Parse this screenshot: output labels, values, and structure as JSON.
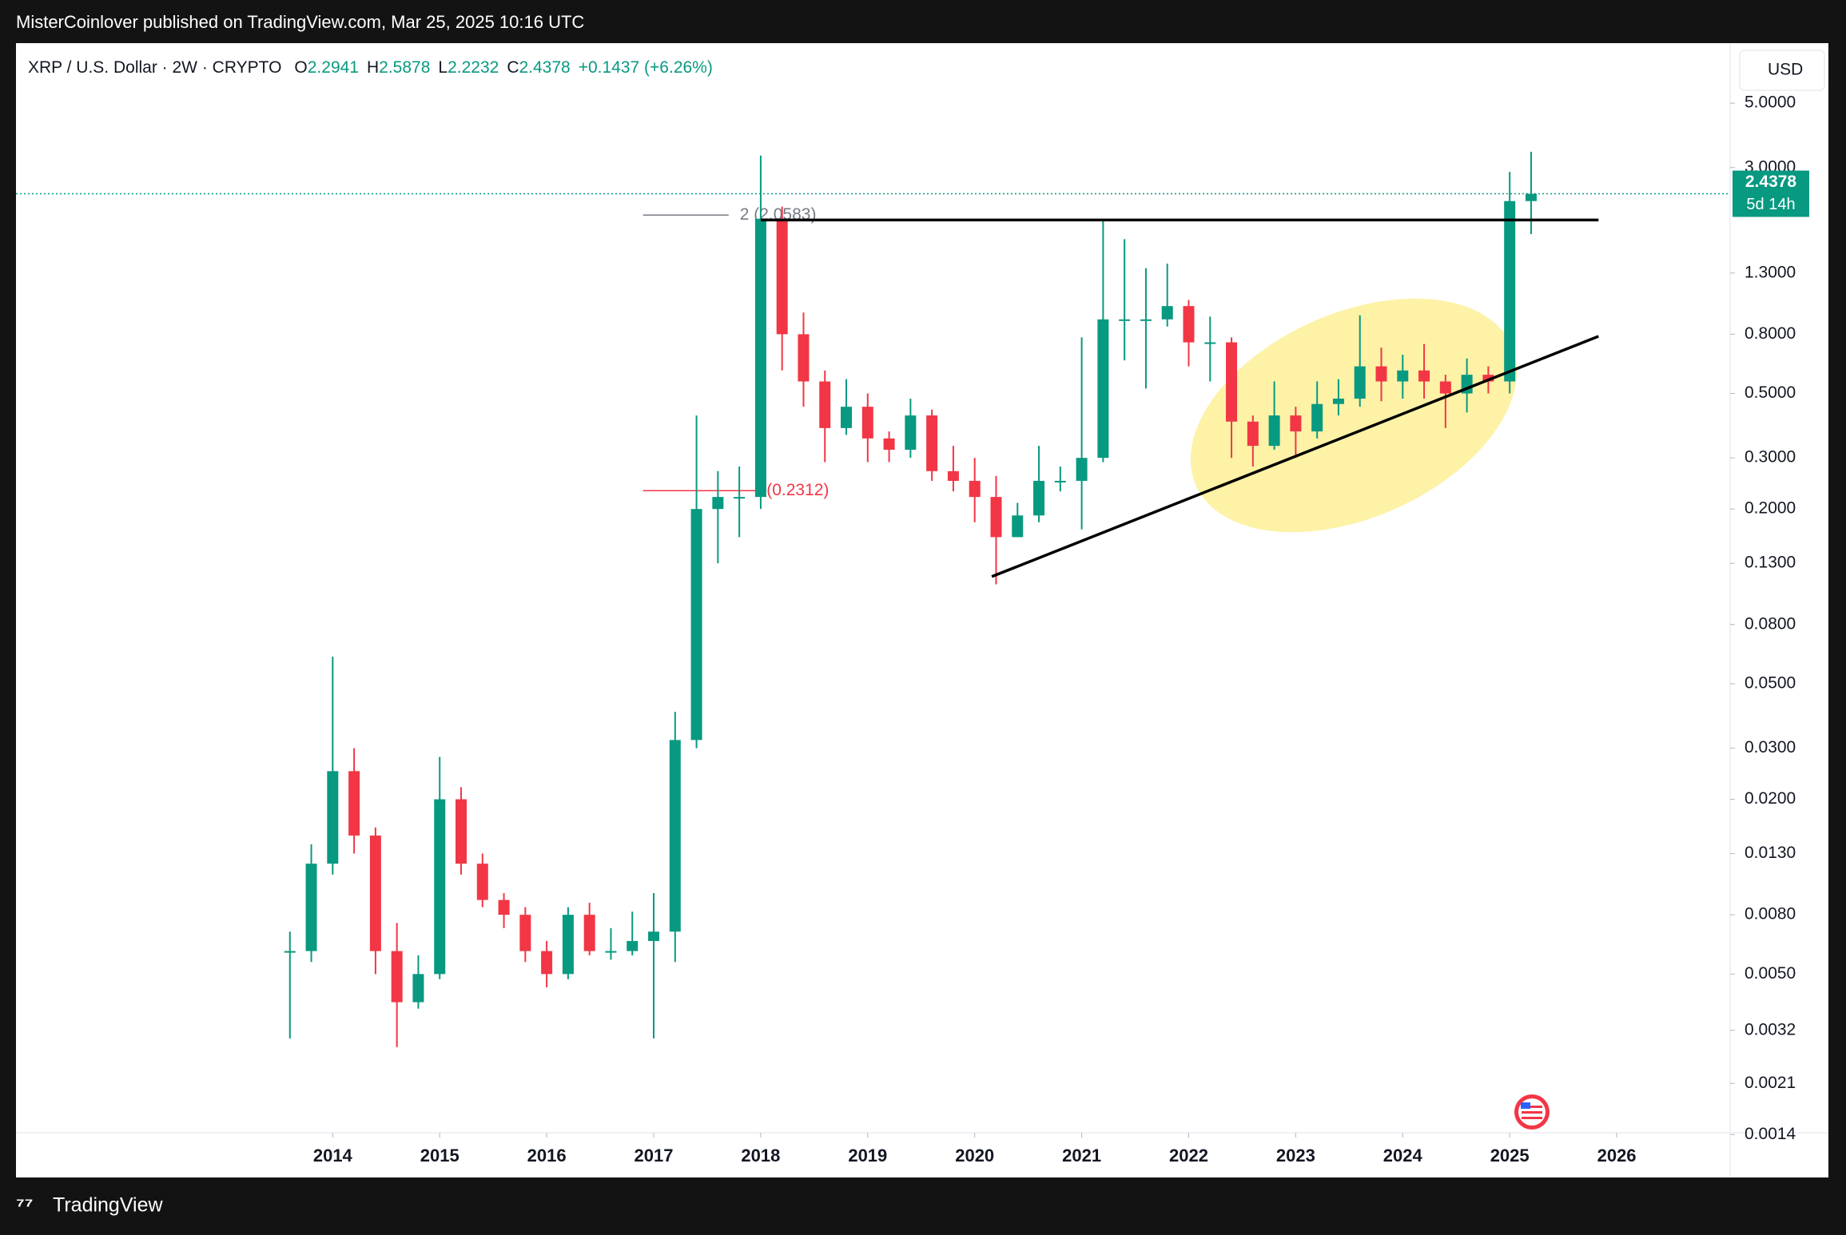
{
  "header": {
    "published": "MisterCoinlover published on TradingView.com, Mar 25, 2025 10:16 UTC",
    "brand": "TradingView",
    "currency": "USD"
  },
  "chart_data": {
    "type": "candlestick",
    "symbol": "XRP / U.S. Dollar · 2W · CRYPTO",
    "ohlc_legend": [
      {
        "key": "O",
        "value": 2.2941
      },
      {
        "key": "H",
        "value": 2.5878
      },
      {
        "key": "L",
        "value": 2.2232
      },
      {
        "key": "C",
        "value": 2.4378
      }
    ],
    "change": "+0.1437 (+6.26%)",
    "price_label": {
      "value": 2.4378,
      "countdown": "5d 14h"
    },
    "up_color": "#089981",
    "down_color": "#f23645",
    "log_scale": true,
    "grid": false,
    "xlim": [
      2011.04,
      2027.06
    ],
    "xticks": [
      2014,
      2015,
      2016,
      2017,
      2018,
      2019,
      2020,
      2021,
      2022,
      2023,
      2024,
      2025,
      2026
    ],
    "ylim": [
      0.00142,
      8.05
    ],
    "yticks": [
      {
        "value": 5,
        "label": "5.0000"
      },
      {
        "value": 3,
        "label": "3.0000"
      },
      {
        "value": 1.3,
        "label": "1.3000"
      },
      {
        "value": 0.8,
        "label": "0.8000"
      },
      {
        "value": 0.5,
        "label": "0.5000"
      },
      {
        "value": 0.3,
        "label": "0.3000"
      },
      {
        "value": 0.2,
        "label": "0.2000"
      },
      {
        "value": 0.13,
        "label": "0.1300"
      },
      {
        "value": 0.08,
        "label": "0.0800"
      },
      {
        "value": 0.05,
        "label": "0.0500"
      },
      {
        "value": 0.03,
        "label": "0.0300"
      },
      {
        "value": 0.02,
        "label": "0.0200"
      },
      {
        "value": 0.013,
        "label": "0.0130"
      },
      {
        "value": 0.008,
        "label": "0.0080"
      },
      {
        "value": 0.005,
        "label": "0.0050"
      },
      {
        "value": 0.0032,
        "label": "0.0032"
      },
      {
        "value": 0.0021,
        "label": "0.0021"
      },
      {
        "value": 0.0014,
        "label": "0.0014"
      }
    ],
    "x": [
      2013.6,
      2013.8,
      2014.0,
      2014.2,
      2014.4,
      2014.6,
      2014.8,
      2015.0,
      2015.2,
      2015.4,
      2015.6,
      2015.8,
      2016.0,
      2016.2,
      2016.4,
      2016.6,
      2016.8,
      2017.0,
      2017.2,
      2017.4,
      2017.6,
      2017.8,
      2018.0,
      2018.2,
      2018.4,
      2018.6,
      2018.8,
      2019.0,
      2019.2,
      2019.4,
      2019.6,
      2019.8,
      2020.0,
      2020.2,
      2020.4,
      2020.6,
      2020.8,
      2021.0,
      2021.2,
      2021.4,
      2021.6,
      2021.8,
      2022.0,
      2022.2,
      2022.4,
      2022.6,
      2022.8,
      2023.0,
      2023.2,
      2023.4,
      2023.6,
      2023.8,
      2024.0,
      2024.2,
      2024.4,
      2024.6,
      2024.8,
      2025.0,
      2025.2
    ],
    "open": [
      0.006,
      0.006,
      0.012,
      0.025,
      0.015,
      0.006,
      0.004,
      0.005,
      0.02,
      0.012,
      0.009,
      0.008,
      0.006,
      0.005,
      0.008,
      0.006,
      0.006,
      0.0065,
      0.007,
      0.032,
      0.2,
      0.22,
      0.22,
      2.0,
      0.8,
      0.55,
      0.38,
      0.45,
      0.35,
      0.32,
      0.42,
      0.27,
      0.25,
      0.22,
      0.16,
      0.19,
      0.25,
      0.25,
      0.3,
      0.9,
      0.9,
      0.9,
      1.0,
      0.75,
      0.75,
      0.4,
      0.33,
      0.42,
      0.37,
      0.46,
      0.48,
      0.62,
      0.55,
      0.6,
      0.55,
      0.5,
      0.58,
      0.55,
      2.3
    ],
    "high": [
      0.007,
      0.014,
      0.062,
      0.03,
      0.016,
      0.0075,
      0.0058,
      0.028,
      0.022,
      0.013,
      0.0095,
      0.0085,
      0.0065,
      0.0085,
      0.0088,
      0.0072,
      0.0082,
      0.0095,
      0.04,
      0.42,
      0.27,
      0.28,
      3.3,
      2.2,
      0.95,
      0.6,
      0.56,
      0.5,
      0.37,
      0.48,
      0.44,
      0.33,
      0.3,
      0.26,
      0.21,
      0.33,
      0.28,
      0.78,
      1.96,
      1.7,
      1.35,
      1.4,
      1.05,
      0.92,
      0.78,
      0.42,
      0.55,
      0.45,
      0.55,
      0.56,
      0.93,
      0.72,
      0.68,
      0.74,
      0.58,
      0.66,
      0.62,
      2.9,
      3.4
    ],
    "low": [
      0.003,
      0.0055,
      0.011,
      0.013,
      0.005,
      0.0028,
      0.0038,
      0.0048,
      0.011,
      0.0085,
      0.0072,
      0.0055,
      0.0045,
      0.0048,
      0.0058,
      0.0056,
      0.0058,
      0.003,
      0.0055,
      0.03,
      0.13,
      0.16,
      0.2,
      0.6,
      0.45,
      0.29,
      0.36,
      0.29,
      0.29,
      0.3,
      0.25,
      0.23,
      0.18,
      0.11,
      0.16,
      0.18,
      0.23,
      0.17,
      0.29,
      0.65,
      0.52,
      0.85,
      0.62,
      0.55,
      0.3,
      0.28,
      0.32,
      0.3,
      0.35,
      0.42,
      0.45,
      0.47,
      0.48,
      0.48,
      0.38,
      0.43,
      0.5,
      0.5,
      1.77
    ],
    "close": [
      0.006,
      0.012,
      0.025,
      0.015,
      0.006,
      0.004,
      0.005,
      0.02,
      0.012,
      0.009,
      0.008,
      0.006,
      0.005,
      0.008,
      0.006,
      0.006,
      0.0065,
      0.007,
      0.032,
      0.2,
      0.22,
      0.22,
      2.0,
      0.8,
      0.55,
      0.38,
      0.45,
      0.35,
      0.32,
      0.42,
      0.27,
      0.25,
      0.22,
      0.16,
      0.19,
      0.25,
      0.25,
      0.3,
      0.9,
      0.9,
      0.9,
      1.0,
      0.75,
      0.75,
      0.4,
      0.33,
      0.42,
      0.37,
      0.46,
      0.48,
      0.62,
      0.55,
      0.6,
      0.55,
      0.5,
      0.58,
      0.55,
      2.3,
      2.4378
    ],
    "levels": [
      {
        "label": "2 (2.0583)",
        "value": 2.0583,
        "color": "#787b86",
        "x": [
          2016.9,
          2017.7
        ]
      },
      {
        "label": "(0.2312)",
        "value": 0.2312,
        "color": "#f23645",
        "x": [
          2016.9,
          2017.95
        ]
      }
    ],
    "trendlines": [
      {
        "x": [
          2018.0,
          2025.83
        ],
        "y": [
          1.98,
          1.98
        ]
      },
      {
        "x": [
          2020.16,
          2025.83
        ],
        "y": [
          0.117,
          0.787
        ]
      }
    ]
  }
}
